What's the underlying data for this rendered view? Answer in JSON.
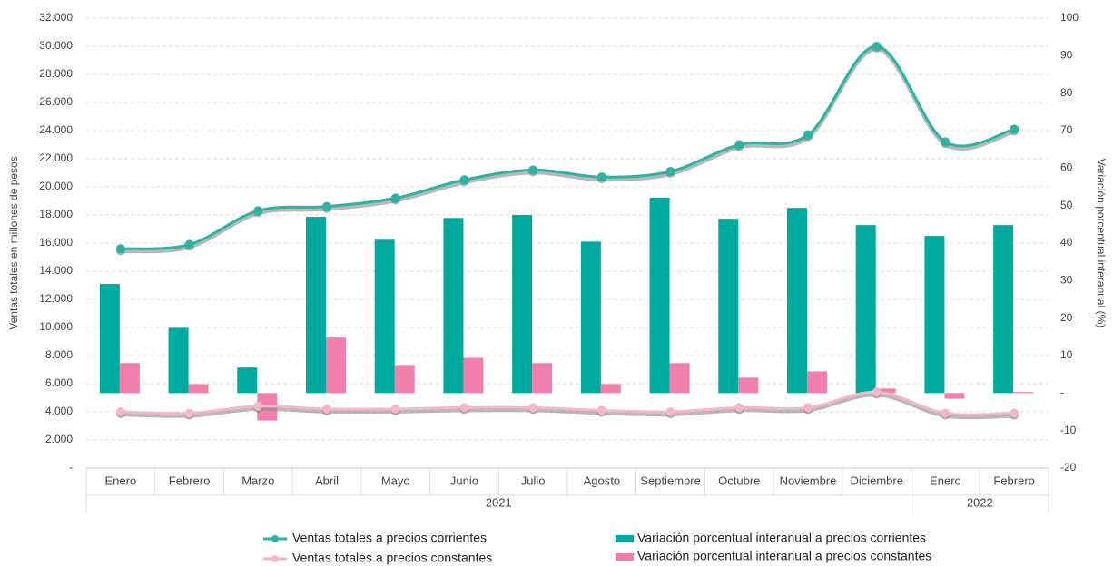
{
  "chart_data": {
    "type": "combo",
    "y_label": "Ventas totales en millones de pesos",
    "y2_label": "Variación porcentual interanual (%)",
    "categories": [
      "Enero",
      "Febrero",
      "Marzo",
      "Abril",
      "Mayo",
      "Junio",
      "Julio",
      "Agosto",
      "Septiembre",
      "Octubre",
      "Noviembre",
      "Diciembre",
      "Enero",
      "Febrero"
    ],
    "groups": [
      {
        "label": "2021",
        "span": 12
      },
      {
        "label": "2022",
        "span": 2
      }
    ],
    "series": [
      {
        "name": "Ventas totales a precios corrientes",
        "kind": "line",
        "color": "#2bb3a3",
        "values": [
          15600,
          15900,
          18300,
          18600,
          19200,
          20500,
          21200,
          20700,
          21100,
          23000,
          23700,
          30000,
          23200,
          24100
        ]
      },
      {
        "name": "Ventas totales a precios constantes",
        "kind": "line",
        "color": "#f4b6c8",
        "values": [
          4000,
          3900,
          4400,
          4200,
          4200,
          4300,
          4300,
          4100,
          4000,
          4300,
          4300,
          5400,
          3900,
          3900
        ]
      },
      {
        "name": "Variación porcentual interanual a precios corrientes",
        "kind": "bar",
        "axis": "y2",
        "color": "#00a99d",
        "values": [
          29.1,
          17.4,
          6.8,
          47.0,
          40.9,
          46.7,
          47.5,
          40.4,
          52.1,
          46.5,
          49.4,
          44.8,
          41.9,
          44.8
        ]
      },
      {
        "name": "Variación porcentual interanual a precios constantes",
        "kind": "bar",
        "axis": "y2",
        "color": "#f07fac",
        "values": [
          8.0,
          2.4,
          -7.3,
          14.8,
          7.5,
          9.4,
          8.0,
          2.4,
          8.0,
          4.1,
          5.8,
          1.2,
          -1.5,
          0.3
        ]
      }
    ],
    "ylim": [
      0,
      32000
    ],
    "yticks": [
      {
        "value": 0,
        "label": "-"
      },
      {
        "value": 2000,
        "label": "2.000"
      },
      {
        "value": 4000,
        "label": "4.000"
      },
      {
        "value": 6000,
        "label": "6.000"
      },
      {
        "value": 8000,
        "label": "8.000"
      },
      {
        "value": 10000,
        "label": "10.000"
      },
      {
        "value": 12000,
        "label": "12.000"
      },
      {
        "value": 14000,
        "label": "14.000"
      },
      {
        "value": 16000,
        "label": "16.000"
      },
      {
        "value": 18000,
        "label": "18.000"
      },
      {
        "value": 20000,
        "label": "20.000"
      },
      {
        "value": 22000,
        "label": "22.000"
      },
      {
        "value": 24000,
        "label": "24.000"
      },
      {
        "value": 26000,
        "label": "26.000"
      },
      {
        "value": 28000,
        "label": "28.000"
      },
      {
        "value": 30000,
        "label": "30.000"
      },
      {
        "value": 32000,
        "label": "32.000"
      }
    ],
    "y2lim": [
      -20,
      100
    ],
    "y2ticks": [
      -20,
      -10,
      {
        "value": 0,
        "label": "-"
      },
      10,
      20,
      30,
      40,
      50,
      60,
      70,
      80,
      90,
      100
    ],
    "grid": true
  }
}
